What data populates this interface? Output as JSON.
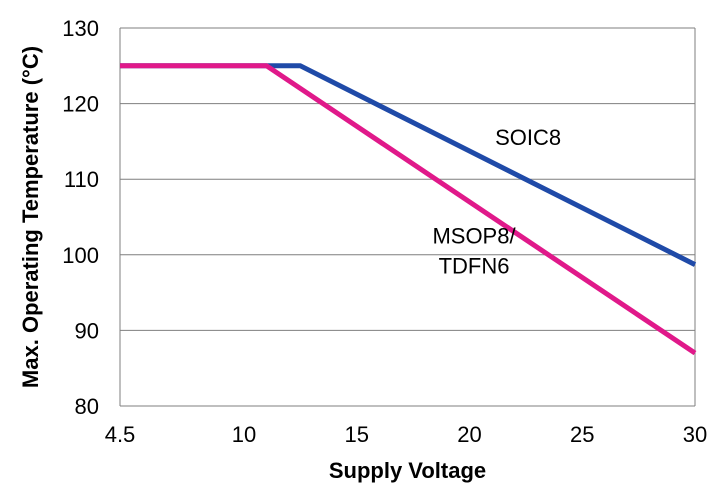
{
  "chart_data": {
    "type": "line",
    "xlabel": "Supply Voltage",
    "ylabel": "Max. Operating Temperature (°C)",
    "xlim": [
      4.5,
      30
    ],
    "ylim": [
      80,
      130
    ],
    "x_ticks": [
      "4.5",
      "10",
      "15",
      "20",
      "25",
      "30"
    ],
    "x_tick_values": [
      4.5,
      10,
      15,
      20,
      25,
      30
    ],
    "y_ticks": [
      "80",
      "90",
      "100",
      "110",
      "120",
      "130"
    ],
    "y_tick_values": [
      80,
      90,
      100,
      110,
      120,
      130
    ],
    "grid": "horizontal",
    "series": [
      {
        "name": "SOIC8",
        "color": "#1f4aa8",
        "x": [
          4.5,
          12.5,
          30
        ],
        "y": [
          125,
          125,
          98.7
        ]
      },
      {
        "name": "MSOP8/ TDFN6",
        "color": "#e0198a",
        "x": [
          4.5,
          11.0,
          30
        ],
        "y": [
          125,
          125,
          87
        ]
      }
    ],
    "annotations": [
      {
        "lines": [
          "SOIC8"
        ],
        "x": 22.6,
        "y": 114.5
      },
      {
        "lines": [
          "MSOP8/",
          "TDFN6"
        ],
        "x": 20.2,
        "y": 101.5
      }
    ]
  }
}
